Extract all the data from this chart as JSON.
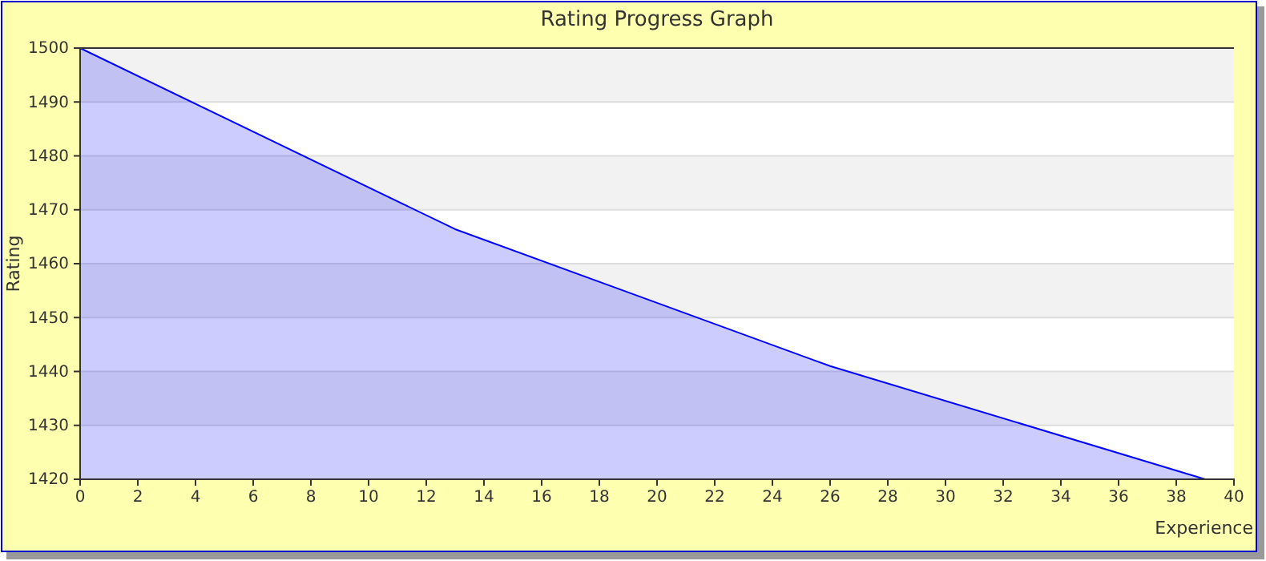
{
  "chart_data": {
    "type": "area",
    "title": "Rating Progress Graph",
    "xlabel": "Experience",
    "ylabel": "Rating",
    "x": [
      0,
      13,
      26,
      39
    ],
    "series": [
      {
        "color": "#0000ff",
        "values": [
          1500,
          1466.4,
          1441,
          1420
        ]
      }
    ],
    "xlim": [
      0,
      40
    ],
    "ylim": [
      1420,
      1500
    ],
    "xticks": [
      0,
      2,
      4,
      6,
      8,
      10,
      12,
      14,
      16,
      18,
      20,
      22,
      24,
      26,
      28,
      30,
      32,
      34,
      36,
      38,
      40
    ],
    "yticks": [
      1420,
      1430,
      1440,
      1450,
      1460,
      1470,
      1480,
      1490,
      1500
    ],
    "grid": "y"
  }
}
